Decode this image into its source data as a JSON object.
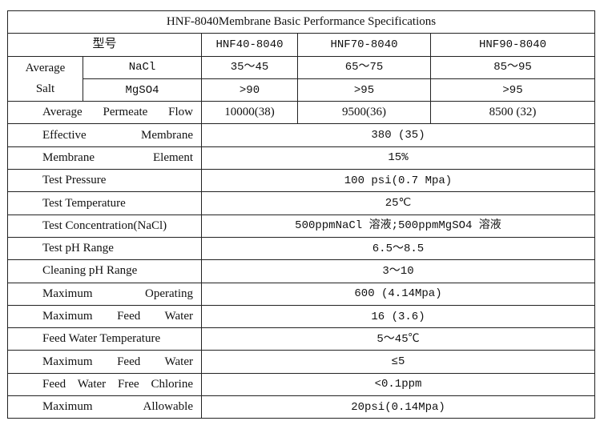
{
  "title": "HNF-8040Membrane Basic Performance Specifications",
  "header": {
    "model_label": "型号",
    "models": [
      "HNF40-8040",
      "HNF70-8040",
      "HNF90-8040"
    ]
  },
  "salt_group": {
    "label_line1": "Average",
    "label_line2": "Salt"
  },
  "salt_rows": [
    {
      "label": "NaCl",
      "values": [
        "35～45",
        "65～75",
        "85～95"
      ]
    },
    {
      "label": "MgSO4",
      "values": [
        ">90",
        ">95",
        ">95"
      ]
    }
  ],
  "flow_row": {
    "label": "Average Permeate Flow",
    "values": [
      "10000(38)",
      "9500(36)",
      "8500 (32)"
    ]
  },
  "rows": [
    {
      "label": "Effective Membrane",
      "value": "380 (35)",
      "justify": true
    },
    {
      "label": "Membrane Element",
      "value": "15%",
      "justify": true
    },
    {
      "label": "Test Pressure",
      "value": "100 psi(0.7 Mpa)",
      "justify": false
    },
    {
      "label": "Test Temperature",
      "value": "25℃",
      "justify": false
    },
    {
      "label": "Test Concentration(NaCl)",
      "value": "500ppmNaCl 溶液;500ppmMgSO4 溶液",
      "justify": false
    },
    {
      "label": "Test pH Range",
      "value": "6.5～8.5",
      "justify": false
    },
    {
      "label": "Cleaning pH Range",
      "value": "3～10",
      "justify": false
    },
    {
      "label": "Maximum Operating",
      "value": "600 (4.14Mpa)",
      "justify": true
    },
    {
      "label": "Maximum Feed Water",
      "value": "16 (3.6)",
      "justify": true
    },
    {
      "label": "Feed Water Temperature",
      "value": "5～45℃",
      "justify": false
    },
    {
      "label": "Maximum Feed Water",
      "value": "≤5",
      "justify": true
    },
    {
      "label": "Feed Water Free Chlorine",
      "value": "<0.1ppm",
      "justify": true
    },
    {
      "label": "Maximum Allowable",
      "value": "20psi(0.14Mpa)",
      "justify": true
    }
  ]
}
